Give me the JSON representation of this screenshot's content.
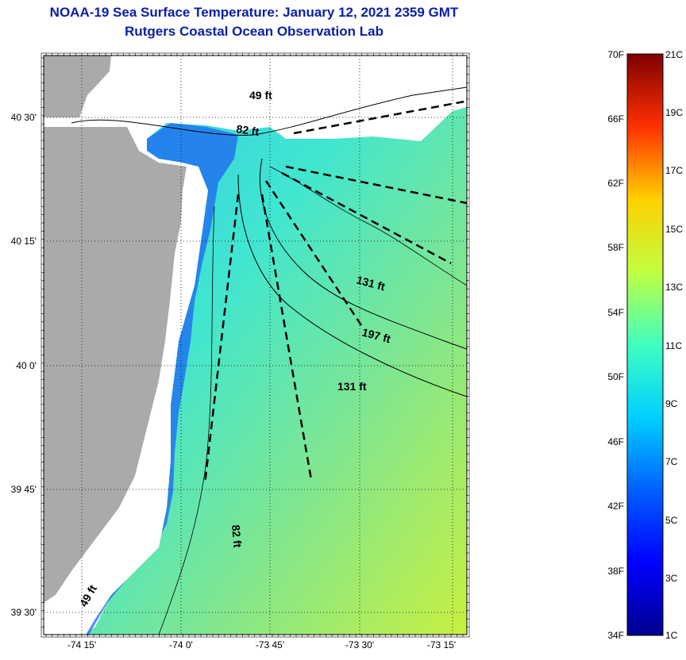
{
  "title": "NOAA-19 Sea Surface Temperature:  January 12, 2021 2359 GMT",
  "subtitle": "Rutgers Coastal Ocean Observation Lab",
  "map": {
    "lat_ticks": [
      "40 30'",
      "40 15'",
      "40 0'",
      "39 45'",
      "39 30'"
    ],
    "lon_ticks": [
      "-74 15'",
      "-74 0'",
      "-73 45'",
      "-73 30'",
      "-73 15'"
    ],
    "depth_labels": [
      "49 ft",
      "82 ft",
      "131 ft",
      "197 ft",
      "131 ft",
      "82 ft",
      "49 ft"
    ],
    "land_color": "#aaaaaa"
  },
  "colorbar": {
    "f_labels": [
      "70F",
      "66F",
      "62F",
      "58F",
      "54F",
      "50F",
      "46F",
      "42F",
      "38F",
      "34F"
    ],
    "c_labels": [
      "21C",
      "19C",
      "17C",
      "15C",
      "13C",
      "11C",
      "9C",
      "7C",
      "5C",
      "3C",
      "1C"
    ],
    "colors": [
      "#7f0000",
      "#ff0000",
      "#ff8000",
      "#ffff00",
      "#80ff80",
      "#00ffff",
      "#0080ff",
      "#0000ff",
      "#00008f"
    ]
  }
}
